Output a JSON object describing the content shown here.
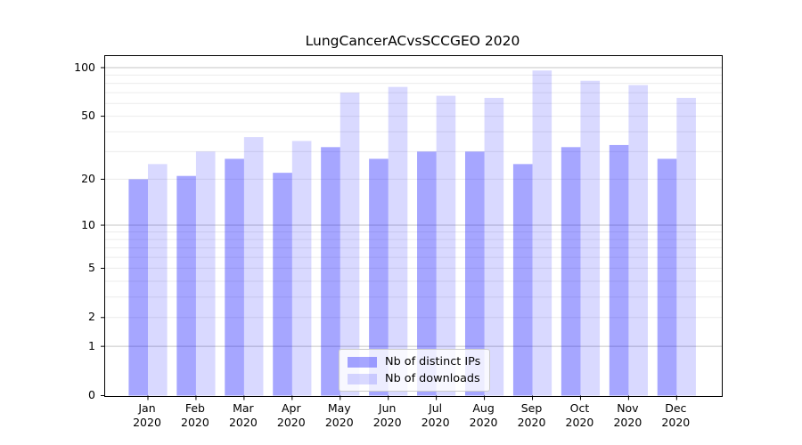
{
  "figure": {
    "background": "#ffffff"
  },
  "chart_data": {
    "type": "bar",
    "title": "LungCancerACvsSCCGEO 2020",
    "categories": [
      "Jan",
      "Feb",
      "Mar",
      "Apr",
      "May",
      "Jun",
      "Jul",
      "Aug",
      "Sep",
      "Oct",
      "Nov",
      "Dec"
    ],
    "category_year": "2020",
    "series": [
      {
        "name": "Nb of distinct IPs",
        "color": "rgba(0,0,255,0.35)",
        "values": [
          20,
          21,
          27,
          22,
          32,
          27,
          30,
          30,
          25,
          32,
          33,
          27
        ]
      },
      {
        "name": "Nb of downloads",
        "color": "rgba(0,0,255,0.15)",
        "values": [
          25,
          30,
          37,
          35,
          70,
          76,
          67,
          65,
          96,
          83,
          78,
          65
        ]
      }
    ],
    "xlabel": "",
    "ylabel": "",
    "yscale": "log1p",
    "ylim": [
      0,
      118
    ],
    "yticks": [
      0,
      1,
      2,
      5,
      10,
      20,
      50,
      100
    ],
    "major_gridlines": [
      1,
      10,
      100
    ],
    "minor_gridlines": [
      2,
      3,
      4,
      5,
      6,
      7,
      8,
      9,
      20,
      30,
      40,
      50,
      60,
      70,
      80,
      90
    ],
    "grid": true,
    "legend_position": "lower-center",
    "colors": {
      "major_grid": "#c6c6c6",
      "minor_grid": "#ececec",
      "axis": "#000000",
      "tick_text": "#000000"
    }
  }
}
